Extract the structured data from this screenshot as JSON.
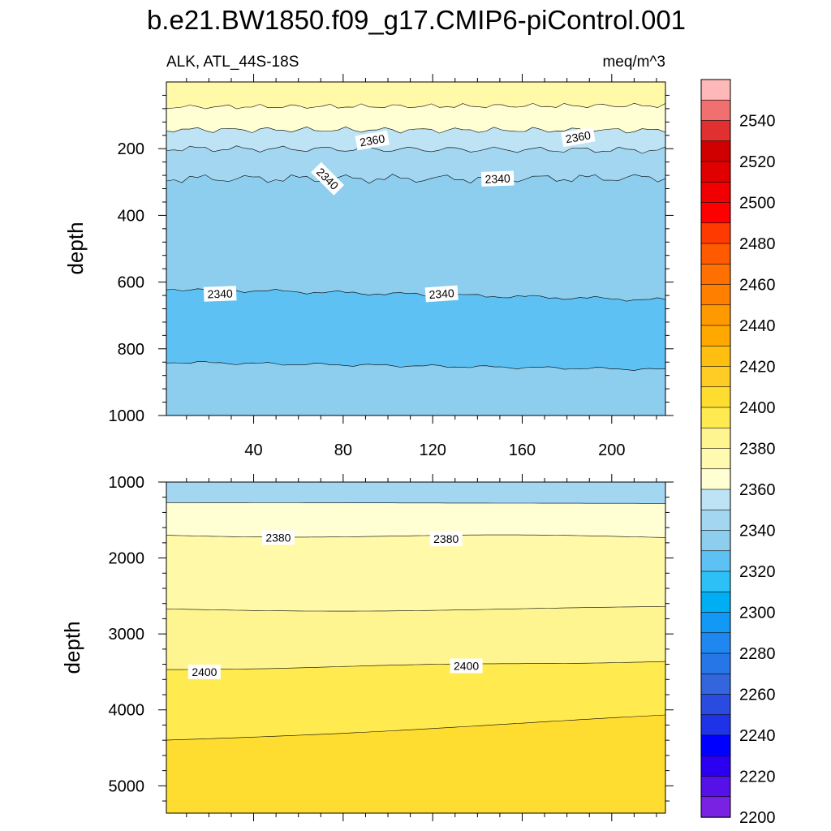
{
  "figure": {
    "title": "b.e21.BW1850.f09_g17.CMIP6-piControl.001",
    "subtitle_left": "ALK, ATL_44S-18S",
    "subtitle_right": "meq/m^3"
  },
  "chart_data": [
    {
      "type": "contour",
      "panel": "upper",
      "xlabel": "",
      "ylabel": "depth",
      "xlim": [
        1,
        224
      ],
      "ylim": [
        1000,
        0
      ],
      "y_axis_top_value": 15,
      "xticks": [
        40,
        80,
        120,
        160,
        200
      ],
      "xtick_labels": [
        "40",
        "80",
        "120",
        "160",
        "200"
      ],
      "yticks": [
        200,
        400,
        600,
        800,
        1000
      ],
      "ytick_labels": [
        "200",
        "400",
        "600",
        "800",
        "1000"
      ],
      "contour_levels": [
        2390,
        2380,
        2370,
        2360,
        2350,
        2340
      ],
      "level_fill_colors": [
        "#FFF9A8",
        "#FFFFD3",
        "#BDE3F4",
        "#A3D7F1",
        "#8DCDEE",
        "#5DC2F3"
      ],
      "contour_labels": [
        {
          "text": "2360",
          "x": 93,
          "depth": 175,
          "rotation": -10
        },
        {
          "text": "2360",
          "x": 185,
          "depth": 165,
          "rotation": -10
        },
        {
          "text": "2340",
          "x": 73,
          "depth": 290,
          "rotation": 45
        },
        {
          "text": "2340",
          "x": 149,
          "depth": 290,
          "rotation": -2
        },
        {
          "text": "2340",
          "x": 25,
          "depth": 635,
          "rotation": -2
        },
        {
          "text": "2340",
          "x": 124,
          "depth": 635,
          "rotation": -4
        }
      ]
    },
    {
      "type": "contour",
      "panel": "lower",
      "xlabel": "",
      "ylabel": "depth",
      "xlim": [
        1,
        224
      ],
      "ylim": [
        5360,
        1000
      ],
      "xticks": [
        40,
        80,
        120,
        160,
        200
      ],
      "xtick_labels": [
        "",
        "",
        "",
        "",
        ""
      ],
      "yticks": [
        1000,
        2000,
        3000,
        4000,
        5000
      ],
      "ytick_labels": [
        "1000",
        "2000",
        "3000",
        "4000",
        "5000"
      ],
      "contour_labels": [
        {
          "text": "2380",
          "x": 51,
          "depth": 1730,
          "rotation": 0
        },
        {
          "text": "2380",
          "x": 126,
          "depth": 1750,
          "rotation": 0
        },
        {
          "text": "2400",
          "x": 18,
          "depth": 3500,
          "rotation": 0
        },
        {
          "text": "2400",
          "x": 135,
          "depth": 3420,
          "rotation": 0
        }
      ]
    }
  ],
  "colorbar": {
    "labels": [
      "2540",
      "2520",
      "2500",
      "2480",
      "2460",
      "2440",
      "2420",
      "2400",
      "2380",
      "2360",
      "2340",
      "2320",
      "2300",
      "2280",
      "2260",
      "2240",
      "2220",
      "2200"
    ],
    "colors": [
      "#FFB8B8",
      "#F07070",
      "#E03030",
      "#D00000",
      "#E00000",
      "#F00000",
      "#FF0000",
      "#FF3A00",
      "#FF5A00",
      "#FF7000",
      "#FF8000",
      "#FF9900",
      "#FFA800",
      "#FFBF10",
      "#FFCC25",
      "#FFDD30",
      "#FFEB50",
      "#FFF590",
      "#FFFAB0",
      "#FFFFD3",
      "#BDE3F4",
      "#A3D7F1",
      "#8DCDEE",
      "#5DC2F3",
      "#2CC0F6",
      "#00AEF3",
      "#1299F5",
      "#1E88F0",
      "#2676E8",
      "#3366DD",
      "#2A4BE0",
      "#1E33E8",
      "#0000FF",
      "#2B00F0",
      "#5511E8",
      "#7A22E2"
    ]
  }
}
